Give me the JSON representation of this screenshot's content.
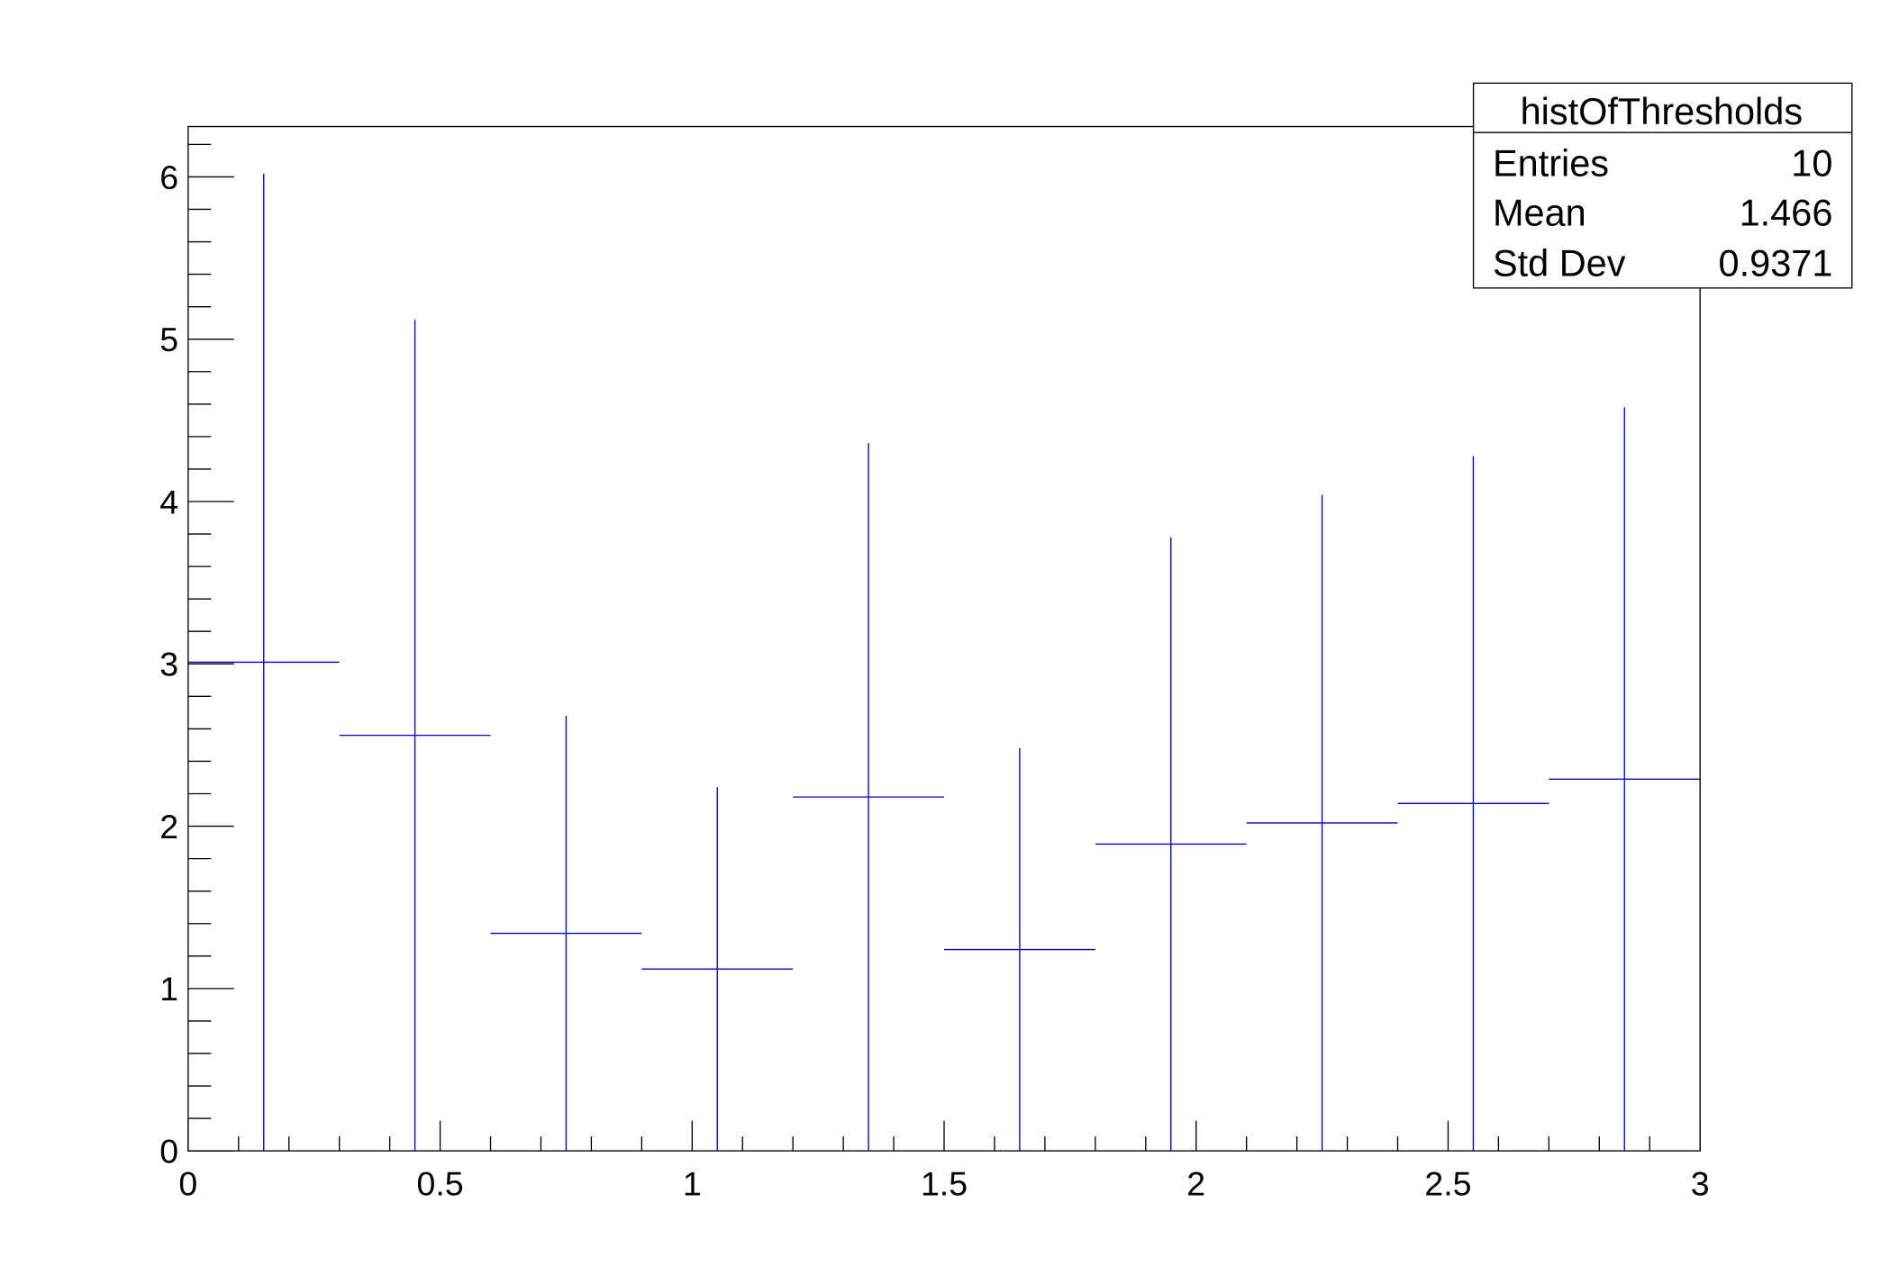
{
  "chart_data": {
    "type": "bar",
    "style": "histogram with error bars",
    "title": "",
    "xlabel": "",
    "ylabel": "",
    "xlim": [
      0,
      3
    ],
    "ylim": [
      0,
      6.31
    ],
    "grid": false,
    "bin_edges": [
      0,
      0.3,
      0.6,
      0.9,
      1.2,
      1.5,
      1.8,
      2.1,
      2.4,
      2.7,
      3.0
    ],
    "values": [
      3.01,
      2.56,
      1.34,
      1.12,
      2.18,
      1.24,
      1.89,
      2.02,
      2.14,
      2.29
    ],
    "errors": [
      3.01,
      2.56,
      1.34,
      1.12,
      2.18,
      1.24,
      1.89,
      2.02,
      2.14,
      2.29
    ],
    "x_tick_labels": [
      "0",
      "0.5",
      "1",
      "1.5",
      "2",
      "2.5",
      "3"
    ],
    "y_tick_labels": [
      "0",
      "1",
      "2",
      "3",
      "4",
      "5",
      "6"
    ],
    "color": "#0000cc",
    "stats_box": {
      "title": "histOfThresholds",
      "placement": "top-right",
      "rows": [
        {
          "label": "Entries",
          "value": "10"
        },
        {
          "label": "Mean",
          "value": "1.466"
        },
        {
          "label": "Std Dev",
          "value": "0.9371"
        }
      ]
    }
  }
}
